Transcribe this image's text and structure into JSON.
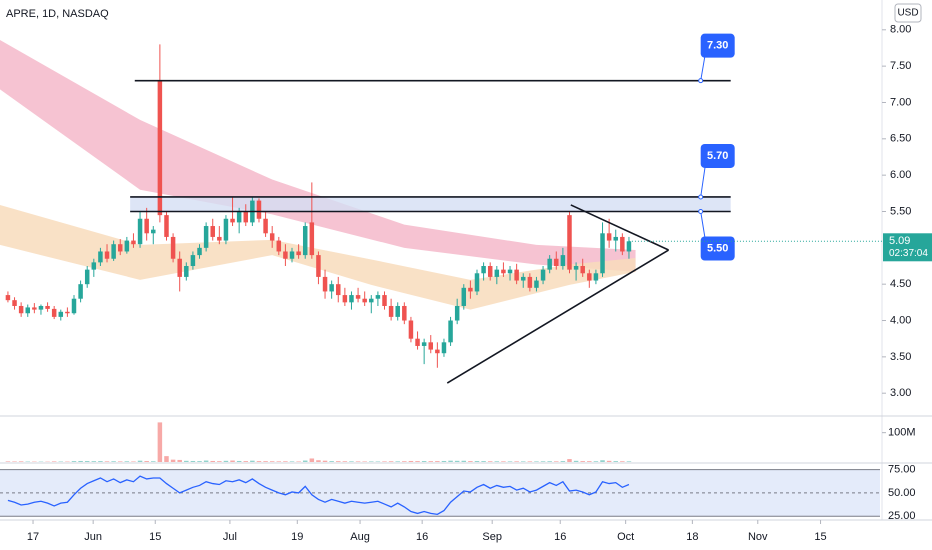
{
  "chart_data": {
    "type": "candlestick",
    "title": "APRE, 1D, NASDAQ",
    "currency": "USD",
    "up_color": "#26a69a",
    "down_color": "#ef5350",
    "candles": [
      [
        4.35,
        4.4,
        4.25,
        4.28
      ],
      [
        4.28,
        4.32,
        4.15,
        4.2
      ],
      [
        4.2,
        4.25,
        4.05,
        4.1
      ],
      [
        4.1,
        4.22,
        4.05,
        4.18
      ],
      [
        4.18,
        4.24,
        4.1,
        4.15
      ],
      [
        4.15,
        4.22,
        4.08,
        4.2
      ],
      [
        4.2,
        4.25,
        4.12,
        4.16
      ],
      [
        4.16,
        4.2,
        4.02,
        4.05
      ],
      [
        4.05,
        4.15,
        4.0,
        4.12
      ],
      [
        4.12,
        4.18,
        4.05,
        4.1
      ],
      [
        4.1,
        4.35,
        4.08,
        4.3
      ],
      [
        4.3,
        4.55,
        4.25,
        4.5
      ],
      [
        4.5,
        4.75,
        4.45,
        4.7
      ],
      [
        4.7,
        4.85,
        4.6,
        4.8
      ],
      [
        4.8,
        5.0,
        4.75,
        4.95
      ],
      [
        4.95,
        5.05,
        4.8,
        4.85
      ],
      [
        4.85,
        5.1,
        4.82,
        5.05
      ],
      [
        5.05,
        5.12,
        4.9,
        4.95
      ],
      [
        4.95,
        5.15,
        4.92,
        5.1
      ],
      [
        5.1,
        5.2,
        5.0,
        5.05
      ],
      [
        5.05,
        5.5,
        5.0,
        5.4
      ],
      [
        5.4,
        5.55,
        5.1,
        5.2
      ],
      [
        5.2,
        5.3,
        5.05,
        5.25
      ],
      [
        7.3,
        7.8,
        5.35,
        5.45
      ],
      [
        5.45,
        5.5,
        5.1,
        5.15
      ],
      [
        5.15,
        5.2,
        4.8,
        4.85
      ],
      [
        4.85,
        4.95,
        4.4,
        4.6
      ],
      [
        4.6,
        4.8,
        4.55,
        4.75
      ],
      [
        4.75,
        4.95,
        4.7,
        4.9
      ],
      [
        4.9,
        5.05,
        4.85,
        5.0
      ],
      [
        5.0,
        5.35,
        4.95,
        5.3
      ],
      [
        5.3,
        5.4,
        5.1,
        5.15
      ],
      [
        5.15,
        5.3,
        5.05,
        5.1
      ],
      [
        5.1,
        5.45,
        5.05,
        5.4
      ],
      [
        5.4,
        5.7,
        5.3,
        5.35
      ],
      [
        5.35,
        5.55,
        5.2,
        5.5
      ],
      [
        5.5,
        5.6,
        5.3,
        5.35
      ],
      [
        5.35,
        5.7,
        5.3,
        5.65
      ],
      [
        5.65,
        5.68,
        5.35,
        5.4
      ],
      [
        5.4,
        5.5,
        5.15,
        5.2
      ],
      [
        5.2,
        5.3,
        5.0,
        5.1
      ],
      [
        5.1,
        5.15,
        4.9,
        4.95
      ],
      [
        4.95,
        5.05,
        4.75,
        4.85
      ],
      [
        4.85,
        5.0,
        4.8,
        4.95
      ],
      [
        4.95,
        5.05,
        4.85,
        4.9
      ],
      [
        4.9,
        5.35,
        4.85,
        5.3
      ],
      [
        5.35,
        5.9,
        4.85,
        4.9
      ],
      [
        4.9,
        4.95,
        4.5,
        4.6
      ],
      [
        4.6,
        4.7,
        4.3,
        4.4
      ],
      [
        4.4,
        4.55,
        4.3,
        4.5
      ],
      [
        4.5,
        4.6,
        4.25,
        4.35
      ],
      [
        4.35,
        4.45,
        4.2,
        4.25
      ],
      [
        4.25,
        4.4,
        4.15,
        4.35
      ],
      [
        4.35,
        4.45,
        4.25,
        4.3
      ],
      [
        4.3,
        4.4,
        4.2,
        4.25
      ],
      [
        4.25,
        4.35,
        4.1,
        4.3
      ],
      [
        4.3,
        4.4,
        4.2,
        4.35
      ],
      [
        4.35,
        4.4,
        4.15,
        4.2
      ],
      [
        4.2,
        4.3,
        4.0,
        4.05
      ],
      [
        4.05,
        4.25,
        4.0,
        4.2
      ],
      [
        4.2,
        4.25,
        3.95,
        4.0
      ],
      [
        4.0,
        4.05,
        3.7,
        3.75
      ],
      [
        3.75,
        3.85,
        3.6,
        3.65
      ],
      [
        3.65,
        3.75,
        3.4,
        3.7
      ],
      [
        3.7,
        3.8,
        3.55,
        3.6
      ],
      [
        3.6,
        3.7,
        3.35,
        3.55
      ],
      [
        3.55,
        3.75,
        3.5,
        3.7
      ],
      [
        3.7,
        4.05,
        3.65,
        4.0
      ],
      [
        4.0,
        4.3,
        3.95,
        4.2
      ],
      [
        4.2,
        4.5,
        4.15,
        4.45
      ],
      [
        4.45,
        4.55,
        4.3,
        4.4
      ],
      [
        4.4,
        4.7,
        4.35,
        4.65
      ],
      [
        4.65,
        4.8,
        4.55,
        4.75
      ],
      [
        4.75,
        4.8,
        4.55,
        4.6
      ],
      [
        4.6,
        4.75,
        4.5,
        4.7
      ],
      [
        4.7,
        4.8,
        4.6,
        4.65
      ],
      [
        4.65,
        4.75,
        4.55,
        4.7
      ],
      [
        4.7,
        4.78,
        4.5,
        4.55
      ],
      [
        4.55,
        4.65,
        4.45,
        4.6
      ],
      [
        4.6,
        4.65,
        4.4,
        4.45
      ],
      [
        4.45,
        4.6,
        4.4,
        4.55
      ],
      [
        4.55,
        4.75,
        4.5,
        4.7
      ],
      [
        4.7,
        4.9,
        4.65,
        4.85
      ],
      [
        4.85,
        4.95,
        4.7,
        4.75
      ],
      [
        4.75,
        5.0,
        4.7,
        4.9
      ],
      [
        5.45,
        5.5,
        4.65,
        4.7
      ],
      [
        4.7,
        4.8,
        4.55,
        4.75
      ],
      [
        4.75,
        4.85,
        4.6,
        4.65
      ],
      [
        4.65,
        4.7,
        4.45,
        4.55
      ],
      [
        4.55,
        4.7,
        4.5,
        4.65
      ],
      [
        4.65,
        5.35,
        4.6,
        5.2
      ],
      [
        5.2,
        5.4,
        5.0,
        5.1
      ],
      [
        5.1,
        5.25,
        4.95,
        5.15
      ],
      [
        5.15,
        5.2,
        4.9,
        4.95
      ],
      [
        4.95,
        5.15,
        4.85,
        5.09
      ]
    ],
    "xlim": [
      -1.2,
      132
    ],
    "xticks": [
      {
        "value": 3.8,
        "label": "17"
      },
      {
        "value": 12.9,
        "label": "Jun"
      },
      {
        "value": 22.3,
        "label": "15"
      },
      {
        "value": 33.6,
        "label": "Jul"
      },
      {
        "value": 43.8,
        "label": "19"
      },
      {
        "value": 53.3,
        "label": "Aug"
      },
      {
        "value": 62.7,
        "label": "16"
      },
      {
        "value": 73.3,
        "label": "Sep"
      },
      {
        "value": 83.6,
        "label": "16"
      },
      {
        "value": 93.5,
        "label": "Oct"
      },
      {
        "value": 103.6,
        "label": "18"
      },
      {
        "value": 113.5,
        "label": "Nov"
      },
      {
        "value": 123,
        "label": "15"
      }
    ],
    "ylim": [
      2.7,
      8.41
    ],
    "yticks": [
      {
        "value": 8,
        "label": "8.00"
      },
      {
        "value": 7.5,
        "label": "7.50"
      },
      {
        "value": 7,
        "label": "7.00"
      },
      {
        "value": 6.5,
        "label": "6.50"
      },
      {
        "value": 6,
        "label": "6.00"
      },
      {
        "value": 5.5,
        "label": "5.50"
      },
      {
        "value": 4.5,
        "label": "4.50"
      },
      {
        "value": 4,
        "label": "4.00"
      },
      {
        "value": 3.5,
        "label": "3.50"
      },
      {
        "value": 3,
        "label": "3.00"
      }
    ],
    "ribbons": [
      {
        "color": "#f5b8ca",
        "x": [
          -1.2,
          20,
          40,
          60,
          80,
          95
        ],
        "upper": [
          7.86,
          6.76,
          5.94,
          5.32,
          5.04,
          4.97
        ],
        "lower": [
          7.18,
          5.8,
          5.46,
          5.0,
          4.77,
          4.67
        ]
      },
      {
        "color": "#f8dcbc",
        "x": [
          -1.2,
          20,
          40,
          55,
          70,
          85,
          95
        ],
        "upper": [
          5.59,
          5.04,
          5.11,
          4.84,
          4.56,
          4.77,
          4.86
        ],
        "lower": [
          5.04,
          4.56,
          4.9,
          4.49,
          4.15,
          4.49,
          4.67
        ]
      }
    ],
    "levels": [
      {
        "value": 7.3,
        "label": "7.30",
        "from": 19.2,
        "to": 109.4
      },
      {
        "value": 5.7,
        "label": "5.70",
        "from": 18.5,
        "to": 109.4
      },
      {
        "value": 5.5,
        "label": "5.50",
        "from": 18.5,
        "to": 109.4
      }
    ],
    "zone_color": "#d5dff4",
    "label_color": "#2962ff",
    "trendlines": [
      [
        [
          66.5,
          3.14
        ],
        [
          100,
          4.97
        ]
      ],
      [
        [
          85.2,
          5.59
        ],
        [
          100,
          4.97
        ]
      ]
    ],
    "last_price": 5.09,
    "countdown": "02:37:04",
    "volume": {
      "ylim": [
        0,
        150000000
      ],
      "yticks": [
        {
          "value": 100000000,
          "label": "100M"
        }
      ],
      "values": [
        2000000,
        1800000,
        2200000,
        1500000,
        1400000,
        1300000,
        1200000,
        2000000,
        1600000,
        1500000,
        3000000,
        3500000,
        3200000,
        2800000,
        3000000,
        2200000,
        2500000,
        2000000,
        2400000,
        1800000,
        4500000,
        3200000,
        2500000,
        135000000,
        20000000,
        8000000,
        7000000,
        4000000,
        3500000,
        3000000,
        5000000,
        3500000,
        2800000,
        4000000,
        5000000,
        3500000,
        3000000,
        4500000,
        3000000,
        2800000,
        2500000,
        2200000,
        2400000,
        2000000,
        1800000,
        5000000,
        12000000,
        6000000,
        4500000,
        3000000,
        2800000,
        2500000,
        2200000,
        2000000,
        1800000,
        1900000,
        1700000,
        2000000,
        2500000,
        2200000,
        2600000,
        3500000,
        3000000,
        3200000,
        2800000,
        3000000,
        3500000,
        4500000,
        4000000,
        4200000,
        3000000,
        3200000,
        3000000,
        2500000,
        2400000,
        2200000,
        2000000,
        2200000,
        2000000,
        2100000,
        2000000,
        2300000,
        2600000,
        2200000,
        3000000,
        10000000,
        4000000,
        3000000,
        2800000,
        2500000,
        6000000,
        4000000,
        3000000,
        2500000,
        2200000
      ]
    },
    "rsi": {
      "color": "#2962ff",
      "band_color": "#e4ebfa",
      "ylim": [
        22,
        81
      ],
      "yticks": [
        {
          "value": 75,
          "label": "75.00"
        },
        {
          "value": 50,
          "label": "50.00"
        },
        {
          "value": 25,
          "label": "25.00"
        }
      ],
      "values": [
        42,
        40,
        37,
        38,
        40,
        41,
        39,
        36,
        39,
        40,
        48,
        55,
        60,
        63,
        66,
        62,
        65,
        61,
        64,
        62,
        68,
        65,
        66,
        66,
        60,
        55,
        50,
        53,
        56,
        58,
        62,
        60,
        59,
        63,
        62,
        64,
        61,
        65,
        60,
        56,
        53,
        50,
        48,
        51,
        50,
        57,
        48,
        43,
        40,
        43,
        41,
        39,
        41,
        40,
        39,
        40,
        41,
        38,
        35,
        39,
        35,
        30,
        28,
        30,
        28,
        27,
        31,
        40,
        46,
        52,
        51,
        56,
        59,
        55,
        58,
        56,
        57,
        53,
        55,
        51,
        53,
        57,
        61,
        58,
        62,
        52,
        53,
        51,
        48,
        51,
        62,
        60,
        61,
        56,
        59
      ]
    }
  }
}
